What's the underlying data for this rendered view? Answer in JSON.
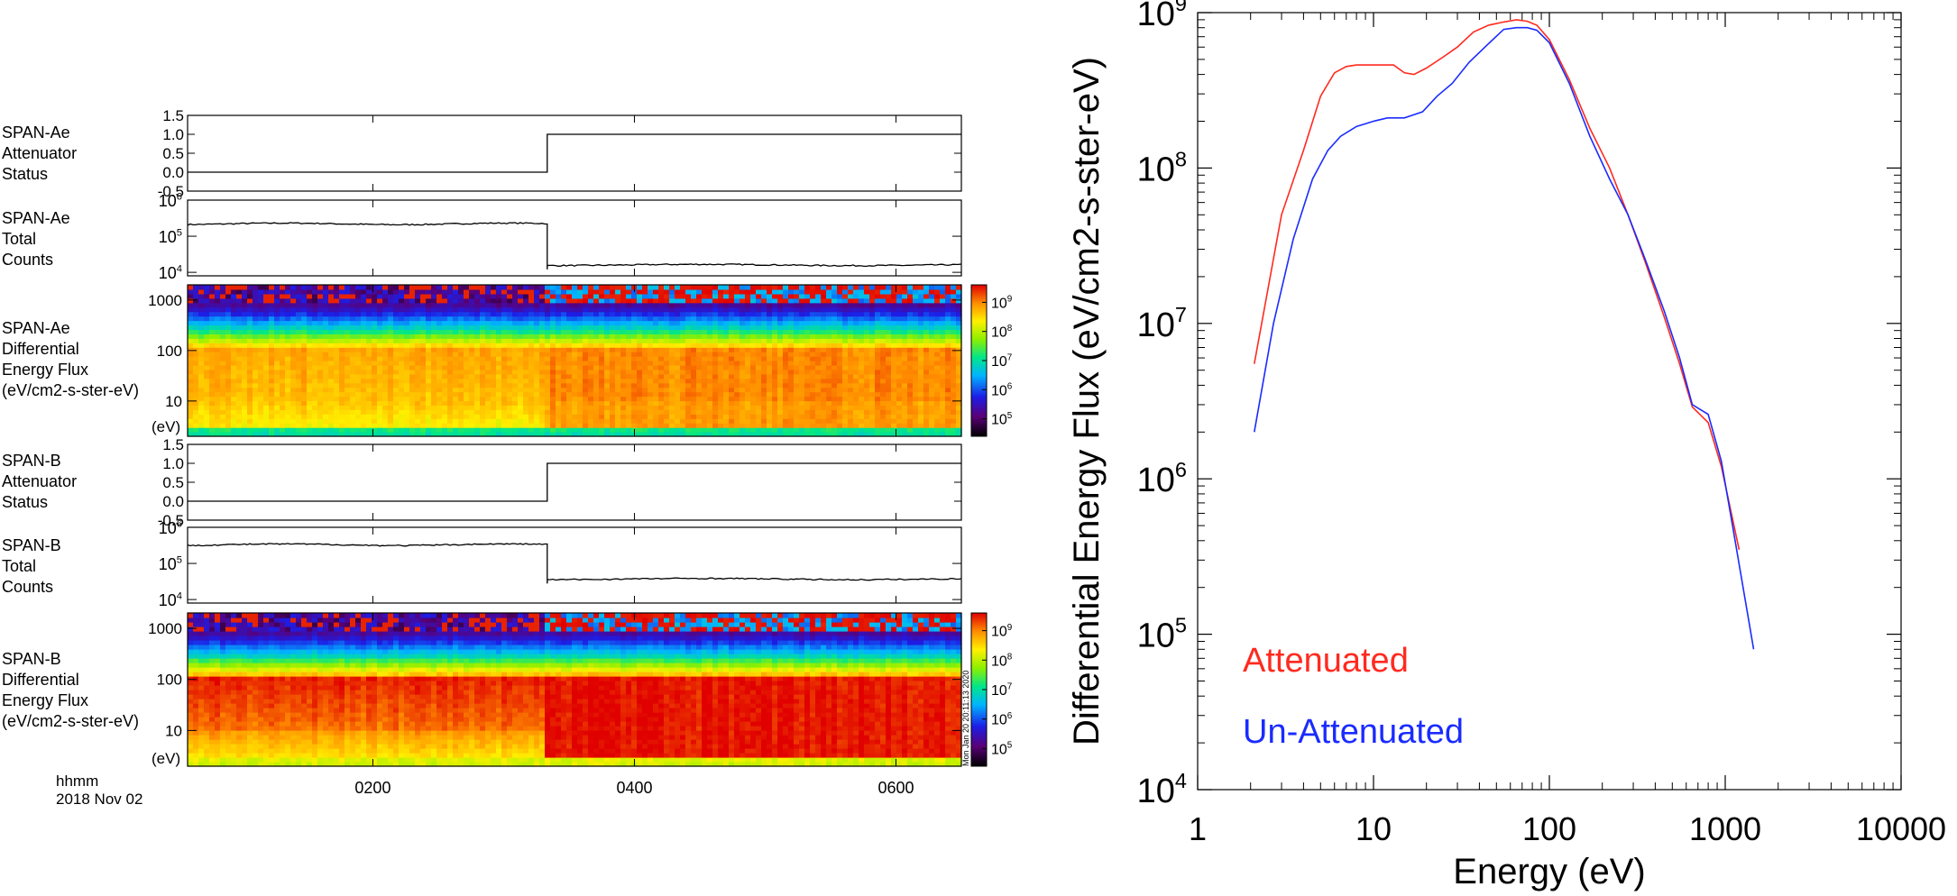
{
  "chart_data": [
    {
      "type": "line",
      "panel": "spana-atten",
      "label_lines": [
        "SPAN-Ae",
        "Attenuator",
        "Status"
      ],
      "ylim": [
        -0.5,
        1.5
      ],
      "yticks": [
        "1.5",
        "1.0",
        "0.5",
        "0.0",
        "-0.5"
      ],
      "ytick_values": [
        1.5,
        1.0,
        0.5,
        0.0,
        -0.5
      ],
      "step_time": "03:20",
      "values_before": 0,
      "values_after": 1
    },
    {
      "type": "line",
      "panel": "spana-counts",
      "label_lines": [
        "SPAN-Ae",
        "Total",
        "Counts"
      ],
      "yscale": "log",
      "ylim": [
        8000,
        1000000
      ],
      "ytick_exponents": [
        "6",
        "5",
        "4"
      ],
      "ytick_values": [
        1000000,
        100000,
        10000
      ],
      "level_before": 220000,
      "level_after": 16000,
      "step_time": "03:20"
    },
    {
      "type": "heatmap",
      "panel": "spana-spectrogram",
      "label_lines": [
        "SPAN-Ae",
        "Differential",
        "Energy Flux",
        "(eV/cm2-s-ster-eV)"
      ],
      "unit_label": "(eV)",
      "yscale": "log",
      "ylim": [
        2,
        2000
      ],
      "yticks": [
        "1000",
        "100",
        "10"
      ],
      "ytick_values": [
        1000,
        100,
        10
      ],
      "colorbar_exponents": [
        "9",
        "8",
        "7",
        "6",
        "5"
      ],
      "colorbar_values": [
        1000000000,
        100000000,
        10000000,
        1000000,
        100000
      ],
      "step_time": "03:20"
    },
    {
      "type": "line",
      "panel": "spanb-atten",
      "label_lines": [
        "SPAN-B",
        "Attenuator",
        "Status"
      ],
      "ylim": [
        -0.5,
        1.5
      ],
      "yticks": [
        "1.5",
        "1.0",
        "0.5",
        "0.0",
        "-0.5"
      ],
      "ytick_values": [
        1.5,
        1.0,
        0.5,
        0.0,
        -0.5
      ],
      "step_time": "03:20",
      "values_before": 0,
      "values_after": 1
    },
    {
      "type": "line",
      "panel": "spanb-counts",
      "label_lines": [
        "SPAN-B",
        "Total",
        "Counts"
      ],
      "yscale": "log",
      "ylim": [
        8000,
        1000000
      ],
      "ytick_exponents": [
        "6",
        "5",
        "4"
      ],
      "ytick_values": [
        1000000,
        100000,
        10000
      ],
      "level_before": 330000,
      "level_after": 37000,
      "step_time": "03:20"
    },
    {
      "type": "heatmap",
      "panel": "spanb-spectrogram",
      "label_lines": [
        "SPAN-B",
        "Differential",
        "Energy Flux",
        "(eV/cm2-s-ster-eV)"
      ],
      "unit_label": "(eV)",
      "yscale": "log",
      "ylim": [
        2,
        2000
      ],
      "yticks": [
        "1000",
        "100",
        "10"
      ],
      "ytick_values": [
        1000,
        100,
        10
      ],
      "colorbar_exponents": [
        "9",
        "8",
        "7",
        "6",
        "5"
      ],
      "colorbar_values": [
        1000000000,
        100000000,
        10000000,
        1000000,
        100000
      ],
      "colorbar_stamp": "Mon Jan 20 20:11:13 2020",
      "step_time": "03:20"
    },
    {
      "type": "line",
      "panel": "energy-spectrum",
      "xlabel": "Energy (eV)",
      "ylabel": "Differential Energy Flux (eV/cm2-s-ster-eV)",
      "xscale": "log",
      "yscale": "log",
      "xlim": [
        1,
        10000
      ],
      "ylim": [
        10000,
        1000000000
      ],
      "xticks": [
        "1",
        "10",
        "100",
        "1000",
        "10000"
      ],
      "xtick_values": [
        1,
        10,
        100,
        1000,
        10000
      ],
      "ytick_exponents": [
        "9",
        "8",
        "7",
        "6",
        "5",
        "4"
      ],
      "ytick_values": [
        1000000000,
        100000000,
        10000000,
        1000000,
        100000,
        10000
      ],
      "series": [
        {
          "name": "Attenuated",
          "color": "#ff2a1f",
          "x": [
            2.1,
            3,
            4,
            5,
            6,
            7,
            8,
            10,
            13,
            15,
            17,
            20,
            25,
            30,
            37,
            45,
            55,
            65,
            75,
            85,
            100,
            130,
            170,
            220,
            280,
            350,
            450,
            550,
            650,
            800,
            950,
            1200
          ],
          "y": [
            5500000.0,
            50000000.0,
            130000000.0,
            290000000.0,
            410000000.0,
            450000000.0,
            460000000.0,
            460000000.0,
            460000000.0,
            410000000.0,
            400000000.0,
            440000000.0,
            520000000.0,
            600000000.0,
            750000000.0,
            830000000.0,
            870000000.0,
            900000000.0,
            880000000.0,
            830000000.0,
            670000000.0,
            370000000.0,
            180000000.0,
            100000000.0,
            50000000.0,
            25000000.0,
            11000000.0,
            5500000.0,
            2900000.0,
            2300000.0,
            1200000.0,
            350000.0
          ]
        },
        {
          "name": "Un-Attenuated",
          "color": "#1a2bff",
          "x": [
            2.1,
            2.7,
            3.5,
            4.5,
            5.5,
            6.5,
            8,
            10,
            12,
            15,
            19,
            23,
            28,
            35,
            45,
            55,
            65,
            75,
            85,
            100,
            130,
            170,
            220,
            280,
            350,
            450,
            550,
            650,
            800,
            950,
            1100,
            1450
          ],
          "y": [
            2000000.0,
            10000000.0,
            35000000.0,
            85000000.0,
            130000000.0,
            160000000.0,
            185000000.0,
            200000000.0,
            210000000.0,
            210000000.0,
            230000000.0,
            290000000.0,
            350000000.0,
            480000000.0,
            630000000.0,
            780000000.0,
            800000000.0,
            800000000.0,
            770000000.0,
            640000000.0,
            350000000.0,
            160000000.0,
            85000000.0,
            50000000.0,
            26000000.0,
            12000000.0,
            6000000.0,
            3000000.0,
            2600000.0,
            1300000.0,
            500000.0,
            80000.0
          ]
        }
      ]
    }
  ],
  "time_axis": {
    "row_labels": [
      "hhmm",
      "2018 Nov 02"
    ],
    "ticks": [
      "0200",
      "0400",
      "0600"
    ],
    "tick_times": [
      "02:00",
      "04:00",
      "06:00"
    ],
    "range": [
      "00:35",
      "06:30"
    ]
  }
}
